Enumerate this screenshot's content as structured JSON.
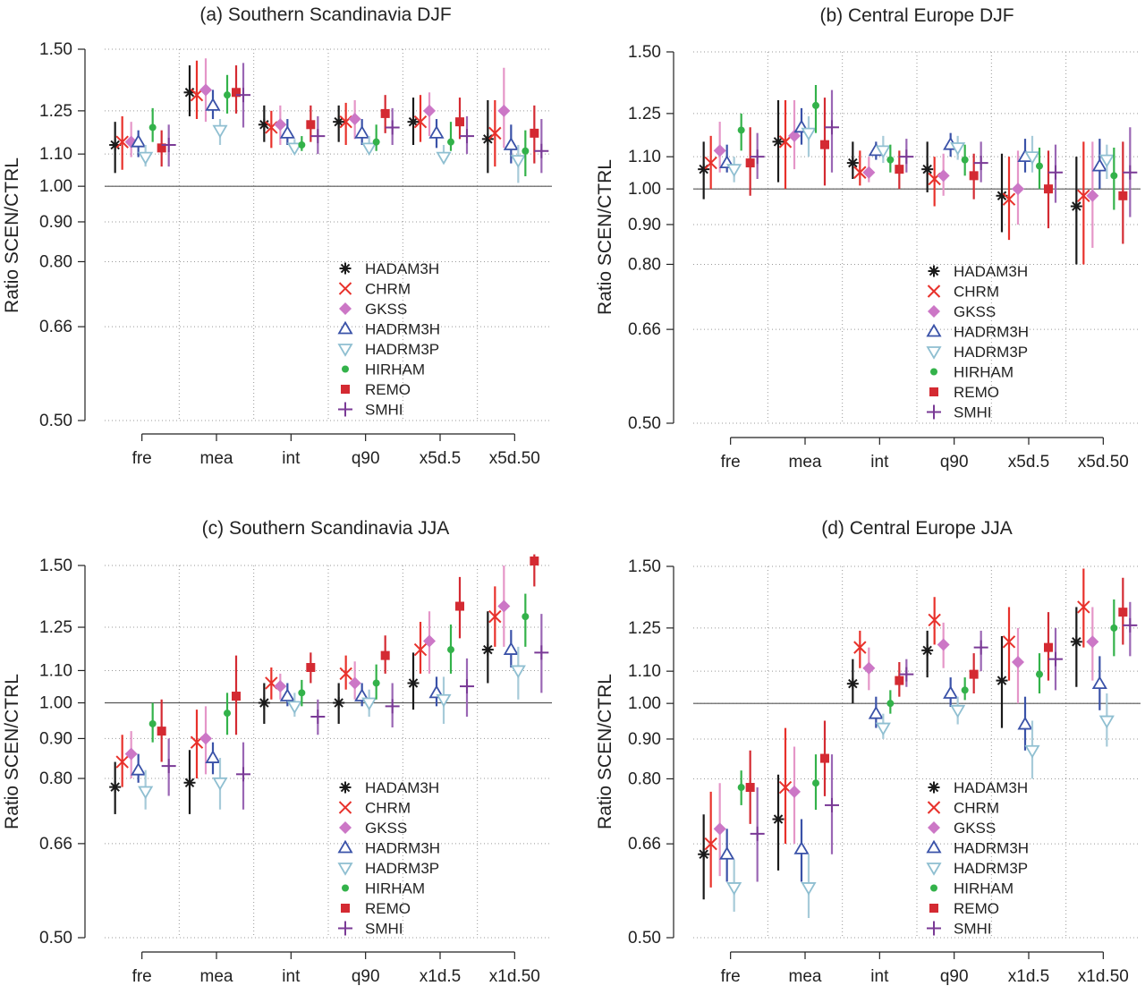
{
  "colors": {
    "HADAM3H": "#1a1a1a",
    "CHRM": "#e8312b",
    "GKSS": "#cc77c6",
    "HADRM3H": "#3a52a8",
    "HADRM3P": "#8fbfd1",
    "HIRHAM": "#33b24a",
    "REMO": "#d42a32",
    "SMHI": "#7a3a96"
  },
  "bar_colors": {
    "HADAM3H": "#1a1a1a",
    "CHRM": "#e8312b",
    "GKSS": "#e596c8",
    "HADRM3H": "#3a52a8",
    "HADRM3P": "#a7cbd9",
    "HIRHAM": "#33b24a",
    "REMO": "#d42a32",
    "SMHI": "#9a66b4"
  },
  "chart_data": [
    {
      "type": "scatter",
      "title": "(a) Southern Scandinavia  DJF",
      "ylabel": "Ratio SCEN/CTRL",
      "yscale": "log",
      "ylim": [
        0.5,
        1.5
      ],
      "yticks": [
        "0.50",
        "0.66",
        "0.80",
        "0.90",
        "1.00",
        "1.10",
        "1.25",
        "1.50"
      ],
      "reference_line": 1.0,
      "categories": [
        "fre",
        "mea",
        "int",
        "q90",
        "x5d.5",
        "x5d.50"
      ],
      "legend": "bottom-right",
      "series": [
        {
          "name": "HADAM3H",
          "marker": "asterisk",
          "values": [
            1.13,
            1.32,
            1.2,
            1.21,
            1.21,
            1.15
          ],
          "lower": [
            1.04,
            1.23,
            1.14,
            1.14,
            1.13,
            1.04
          ],
          "upper": [
            1.21,
            1.43,
            1.27,
            1.27,
            1.3,
            1.29
          ]
        },
        {
          "name": "CHRM",
          "marker": "x",
          "values": [
            1.14,
            1.31,
            1.19,
            1.21,
            1.21,
            1.17
          ],
          "lower": [
            1.05,
            1.22,
            1.12,
            1.13,
            1.14,
            1.06
          ],
          "upper": [
            1.23,
            1.45,
            1.25,
            1.28,
            1.31,
            1.29
          ]
        },
        {
          "name": "GKSS",
          "marker": "diamond",
          "values": [
            1.14,
            1.33,
            1.2,
            1.22,
            1.25,
            1.25
          ],
          "lower": [
            1.09,
            1.21,
            1.13,
            1.15,
            1.16,
            1.12
          ],
          "upper": [
            1.21,
            1.46,
            1.27,
            1.29,
            1.32,
            1.42
          ]
        },
        {
          "name": "HADRM3H",
          "marker": "triangle-up",
          "values": [
            1.14,
            1.27,
            1.17,
            1.17,
            1.17,
            1.13
          ],
          "lower": [
            1.09,
            1.22,
            1.13,
            1.13,
            1.12,
            1.07
          ],
          "upper": [
            1.18,
            1.33,
            1.22,
            1.22,
            1.22,
            1.2
          ]
        },
        {
          "name": "HADRM3P",
          "marker": "triangle-down",
          "values": [
            1.09,
            1.18,
            1.12,
            1.12,
            1.09,
            1.08
          ],
          "lower": [
            1.06,
            1.13,
            1.1,
            1.1,
            1.07,
            1.01
          ],
          "upper": [
            1.13,
            1.22,
            1.15,
            1.16,
            1.13,
            1.13
          ]
        },
        {
          "name": "HIRHAM",
          "marker": "dot",
          "values": [
            1.19,
            1.31,
            1.13,
            1.14,
            1.14,
            1.11
          ],
          "lower": [
            1.14,
            1.24,
            1.11,
            1.11,
            1.11,
            1.03
          ],
          "upper": [
            1.26,
            1.39,
            1.16,
            1.2,
            1.21,
            1.18
          ]
        },
        {
          "name": "REMO",
          "marker": "square",
          "values": [
            1.12,
            1.32,
            1.2,
            1.24,
            1.21,
            1.17
          ],
          "lower": [
            1.06,
            1.24,
            1.14,
            1.17,
            1.15,
            1.07
          ],
          "upper": [
            1.18,
            1.43,
            1.27,
            1.31,
            1.3,
            1.27
          ]
        },
        {
          "name": "SMHI",
          "marker": "plus",
          "values": [
            1.13,
            1.31,
            1.16,
            1.19,
            1.16,
            1.11
          ],
          "lower": [
            1.06,
            1.19,
            1.1,
            1.13,
            1.1,
            1.04
          ],
          "upper": [
            1.2,
            1.44,
            1.23,
            1.26,
            1.23,
            1.22
          ]
        }
      ]
    },
    {
      "type": "scatter",
      "title": "(b) Central Europe  DJF",
      "ylabel": "Ratio SCEN/CTRL",
      "yscale": "log",
      "ylim": [
        0.5,
        1.5
      ],
      "yticks": [
        "0.50",
        "0.66",
        "0.80",
        "0.90",
        "1.00",
        "1.10",
        "1.25",
        "1.50"
      ],
      "reference_line": 1.0,
      "categories": [
        "fre",
        "mea",
        "int",
        "q90",
        "x5d.5",
        "x5d.50"
      ],
      "legend": "bottom-right",
      "series": [
        {
          "name": "HADAM3H",
          "marker": "asterisk",
          "values": [
            1.06,
            1.15,
            1.08,
            1.06,
            0.98,
            0.95
          ],
          "lower": [
            0.97,
            1.02,
            1.03,
            0.99,
            0.88,
            0.8
          ],
          "upper": [
            1.15,
            1.3,
            1.15,
            1.15,
            1.11,
            1.1
          ]
        },
        {
          "name": "CHRM",
          "marker": "x",
          "values": [
            1.08,
            1.15,
            1.05,
            1.03,
            0.97,
            0.98
          ],
          "lower": [
            1.0,
            1.0,
            1.01,
            0.95,
            0.86,
            0.8
          ],
          "upper": [
            1.17,
            1.3,
            1.12,
            1.1,
            1.1,
            1.15
          ]
        },
        {
          "name": "GKSS",
          "marker": "diamond",
          "values": [
            1.12,
            1.17,
            1.05,
            1.04,
            1.0,
            0.98
          ],
          "lower": [
            1.05,
            1.06,
            1.02,
            0.98,
            0.9,
            0.84
          ],
          "upper": [
            1.22,
            1.3,
            1.1,
            1.11,
            1.12,
            1.15
          ]
        },
        {
          "name": "HADRM3H",
          "marker": "triangle-up",
          "values": [
            1.08,
            1.2,
            1.12,
            1.14,
            1.1,
            1.07
          ],
          "lower": [
            1.05,
            1.14,
            1.09,
            1.1,
            1.05,
            1.0
          ],
          "upper": [
            1.14,
            1.27,
            1.15,
            1.18,
            1.16,
            1.16
          ]
        },
        {
          "name": "HADRM3P",
          "marker": "triangle-down",
          "values": [
            1.06,
            1.18,
            1.12,
            1.13,
            1.1,
            1.09
          ],
          "lower": [
            1.02,
            1.1,
            1.08,
            1.09,
            1.05,
            1.03
          ],
          "upper": [
            1.1,
            1.24,
            1.17,
            1.17,
            1.17,
            1.14
          ]
        },
        {
          "name": "HIRHAM",
          "marker": "dot",
          "values": [
            1.19,
            1.28,
            1.09,
            1.09,
            1.07,
            1.04
          ],
          "lower": [
            1.12,
            1.18,
            1.05,
            1.04,
            1.0,
            0.94
          ],
          "upper": [
            1.25,
            1.36,
            1.14,
            1.14,
            1.13,
            1.13
          ]
        },
        {
          "name": "REMO",
          "marker": "square",
          "values": [
            1.08,
            1.14,
            1.06,
            1.04,
            1.0,
            0.98
          ],
          "lower": [
            0.98,
            1.01,
            1.0,
            0.97,
            0.89,
            0.85
          ],
          "upper": [
            1.2,
            1.31,
            1.12,
            1.11,
            1.12,
            1.15
          ]
        },
        {
          "name": "SMHI",
          "marker": "plus",
          "values": [
            1.1,
            1.2,
            1.1,
            1.08,
            1.05,
            1.05
          ],
          "lower": [
            1.03,
            1.05,
            1.05,
            1.02,
            0.96,
            0.92
          ],
          "upper": [
            1.18,
            1.34,
            1.16,
            1.15,
            1.14,
            1.2
          ]
        }
      ]
    },
    {
      "type": "scatter",
      "title": "(c) Southern Scandinavia  JJA",
      "ylabel": "Ratio SCEN/CTRL",
      "yscale": "log",
      "ylim": [
        0.5,
        1.5
      ],
      "yticks": [
        "0.50",
        "0.66",
        "0.80",
        "0.90",
        "1.00",
        "1.10",
        "1.25",
        "1.50"
      ],
      "reference_line": 1.0,
      "categories": [
        "fre",
        "mea",
        "int",
        "q90",
        "x1d.5",
        "x1d.50"
      ],
      "legend": "bottom-right",
      "series": [
        {
          "name": "HADAM3H",
          "marker": "asterisk",
          "values": [
            0.78,
            0.79,
            1.0,
            1.0,
            1.06,
            1.17
          ],
          "lower": [
            0.72,
            0.72,
            0.94,
            0.94,
            0.98,
            1.06
          ],
          "upper": [
            0.84,
            0.87,
            1.06,
            1.06,
            1.16,
            1.31
          ]
        },
        {
          "name": "CHRM",
          "marker": "x",
          "values": [
            0.84,
            0.89,
            1.06,
            1.09,
            1.17,
            1.29
          ],
          "lower": [
            0.78,
            0.8,
            1.01,
            1.04,
            1.09,
            1.18
          ],
          "upper": [
            0.91,
            0.98,
            1.11,
            1.15,
            1.27,
            1.41
          ]
        },
        {
          "name": "GKSS",
          "marker": "diamond",
          "values": [
            0.86,
            0.9,
            1.05,
            1.06,
            1.2,
            1.33
          ],
          "lower": [
            0.8,
            0.81,
            1.01,
            1.01,
            1.09,
            1.18
          ],
          "upper": [
            0.92,
            0.99,
            1.09,
            1.13,
            1.31,
            1.5
          ]
        },
        {
          "name": "HADRM3H",
          "marker": "triangle-up",
          "values": [
            0.82,
            0.85,
            1.02,
            1.02,
            1.03,
            1.17
          ],
          "lower": [
            0.79,
            0.81,
            0.99,
            0.99,
            0.99,
            1.11
          ],
          "upper": [
            0.86,
            0.89,
            1.06,
            1.06,
            1.08,
            1.24
          ]
        },
        {
          "name": "HADRM3P",
          "marker": "triangle-down",
          "values": [
            0.77,
            0.79,
            0.99,
            1.0,
            1.01,
            1.1
          ],
          "lower": [
            0.73,
            0.73,
            0.96,
            0.96,
            0.94,
            1.01
          ],
          "upper": [
            0.82,
            0.85,
            1.03,
            1.04,
            1.08,
            1.18
          ]
        },
        {
          "name": "HIRHAM",
          "marker": "dot",
          "values": [
            0.94,
            0.97,
            1.03,
            1.06,
            1.17,
            1.29
          ],
          "lower": [
            0.89,
            0.91,
            0.99,
            1.01,
            1.09,
            1.18
          ],
          "upper": [
            1.0,
            1.03,
            1.07,
            1.12,
            1.26,
            1.38
          ]
        },
        {
          "name": "REMO",
          "marker": "square",
          "values": [
            0.92,
            1.02,
            1.11,
            1.15,
            1.33,
            1.52
          ],
          "lower": [
            0.84,
            0.91,
            1.06,
            1.09,
            1.21,
            1.41
          ],
          "upper": [
            1.01,
            1.15,
            1.16,
            1.22,
            1.45,
            1.55
          ]
        },
        {
          "name": "SMHI",
          "marker": "plus",
          "values": [
            0.83,
            0.81,
            0.96,
            0.99,
            1.05,
            1.16
          ],
          "lower": [
            0.76,
            0.73,
            0.91,
            0.93,
            0.96,
            1.03
          ],
          "upper": [
            0.9,
            0.89,
            1.01,
            1.06,
            1.14,
            1.3
          ]
        }
      ]
    },
    {
      "type": "scatter",
      "title": "(d) Central Europe  JJA",
      "ylabel": "Ratio SCEN/CTRL",
      "yscale": "log",
      "ylim": [
        0.5,
        1.5
      ],
      "yticks": [
        "0.50",
        "0.66",
        "0.80",
        "0.90",
        "1.00",
        "1.10",
        "1.25",
        "1.50"
      ],
      "reference_line": 1.0,
      "categories": [
        "fre",
        "mea",
        "int",
        "q90",
        "x1d.5",
        "x1d.50"
      ],
      "legend": "bottom-right",
      "series": [
        {
          "name": "HADAM3H",
          "marker": "asterisk",
          "values": [
            0.64,
            0.71,
            1.06,
            1.17,
            1.07,
            1.2
          ],
          "lower": [
            0.56,
            0.61,
            1.0,
            1.08,
            0.93,
            1.05
          ],
          "upper": [
            0.72,
            0.81,
            1.14,
            1.24,
            1.22,
            1.33
          ]
        },
        {
          "name": "CHRM",
          "marker": "x",
          "values": [
            0.66,
            0.78,
            1.18,
            1.28,
            1.2,
            1.33
          ],
          "lower": [
            0.58,
            0.66,
            1.11,
            1.19,
            1.07,
            1.18
          ],
          "upper": [
            0.77,
            0.93,
            1.24,
            1.37,
            1.33,
            1.49
          ]
        },
        {
          "name": "GKSS",
          "marker": "diamond",
          "values": [
            0.69,
            0.77,
            1.11,
            1.19,
            1.13,
            1.2
          ],
          "lower": [
            0.6,
            0.66,
            1.04,
            1.11,
            1.0,
            1.07
          ],
          "upper": [
            0.79,
            0.88,
            1.18,
            1.27,
            1.25,
            1.33
          ]
        },
        {
          "name": "HADRM3H",
          "marker": "triangle-up",
          "values": [
            0.64,
            0.65,
            0.97,
            1.03,
            0.94,
            1.06
          ],
          "lower": [
            0.59,
            0.59,
            0.93,
            0.99,
            0.87,
            0.98
          ],
          "upper": [
            0.69,
            0.71,
            1.02,
            1.08,
            1.02,
            1.15
          ]
        },
        {
          "name": "HADRM3P",
          "marker": "triangle-down",
          "values": [
            0.58,
            0.58,
            0.93,
            0.98,
            0.87,
            0.95
          ],
          "lower": [
            0.54,
            0.53,
            0.9,
            0.94,
            0.8,
            0.88
          ],
          "upper": [
            0.63,
            0.64,
            0.97,
            1.02,
            0.95,
            1.03
          ]
        },
        {
          "name": "HIRHAM",
          "marker": "dot",
          "values": [
            0.78,
            0.79,
            1.0,
            1.04,
            1.09,
            1.25
          ],
          "lower": [
            0.74,
            0.73,
            0.97,
            1.01,
            1.03,
            1.15
          ],
          "upper": [
            0.82,
            0.86,
            1.04,
            1.08,
            1.16,
            1.36
          ]
        },
        {
          "name": "REMO",
          "marker": "square",
          "values": [
            0.78,
            0.85,
            1.07,
            1.09,
            1.18,
            1.31
          ],
          "lower": [
            0.7,
            0.76,
            1.02,
            1.03,
            1.07,
            1.19
          ],
          "upper": [
            0.87,
            0.95,
            1.13,
            1.16,
            1.31,
            1.45
          ]
        },
        {
          "name": "SMHI",
          "marker": "plus",
          "values": [
            0.68,
            0.74,
            1.09,
            1.18,
            1.14,
            1.26
          ],
          "lower": [
            0.59,
            0.64,
            1.05,
            1.1,
            1.04,
            1.15
          ],
          "upper": [
            0.78,
            0.86,
            1.14,
            1.24,
            1.25,
            1.35
          ]
        }
      ]
    }
  ]
}
